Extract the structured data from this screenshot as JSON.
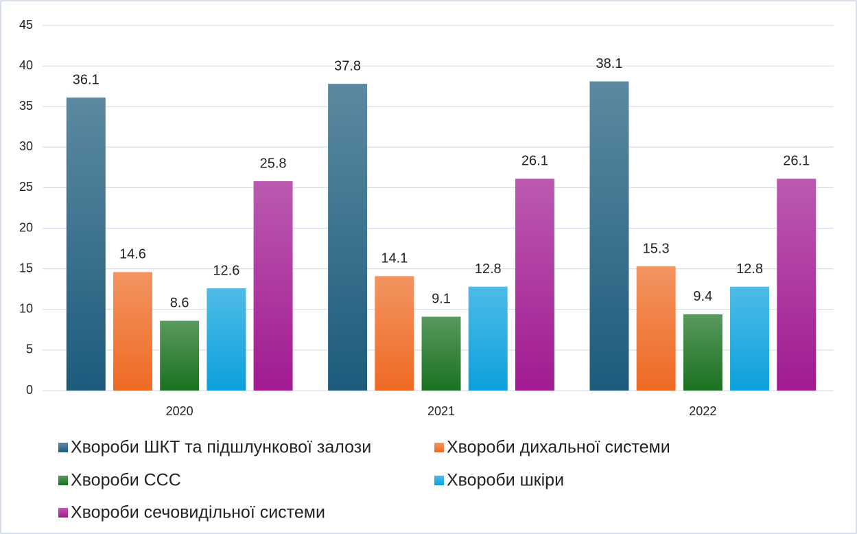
{
  "chart_data": {
    "type": "bar",
    "categories": [
      "2020",
      "2021",
      "2022"
    ],
    "series": [
      {
        "name": "Хвороби ШКТ та підшлункової залози",
        "color": "#1d5b7c",
        "values": [
          36.1,
          37.8,
          38.1
        ]
      },
      {
        "name": "Хвороби дихальної системи",
        "color": "#ee6a24",
        "values": [
          14.6,
          14.1,
          15.3
        ]
      },
      {
        "name": "Хвороби ССС",
        "color": "#1a7120",
        "values": [
          8.6,
          9.1,
          9.4
        ]
      },
      {
        "name": "Хвороби шкіри",
        "color": "#0ba0dc",
        "values": [
          12.6,
          12.8,
          12.8
        ]
      },
      {
        "name": "Хвороби сечовидільної системи",
        "color": "#a11a91",
        "values": [
          25.8,
          26.1,
          26.1
        ]
      }
    ],
    "ylim": [
      0,
      45
    ],
    "yticks": [
      0,
      5,
      10,
      15,
      20,
      25,
      30,
      35,
      40,
      45
    ],
    "grid": true,
    "legend": "bottom"
  }
}
